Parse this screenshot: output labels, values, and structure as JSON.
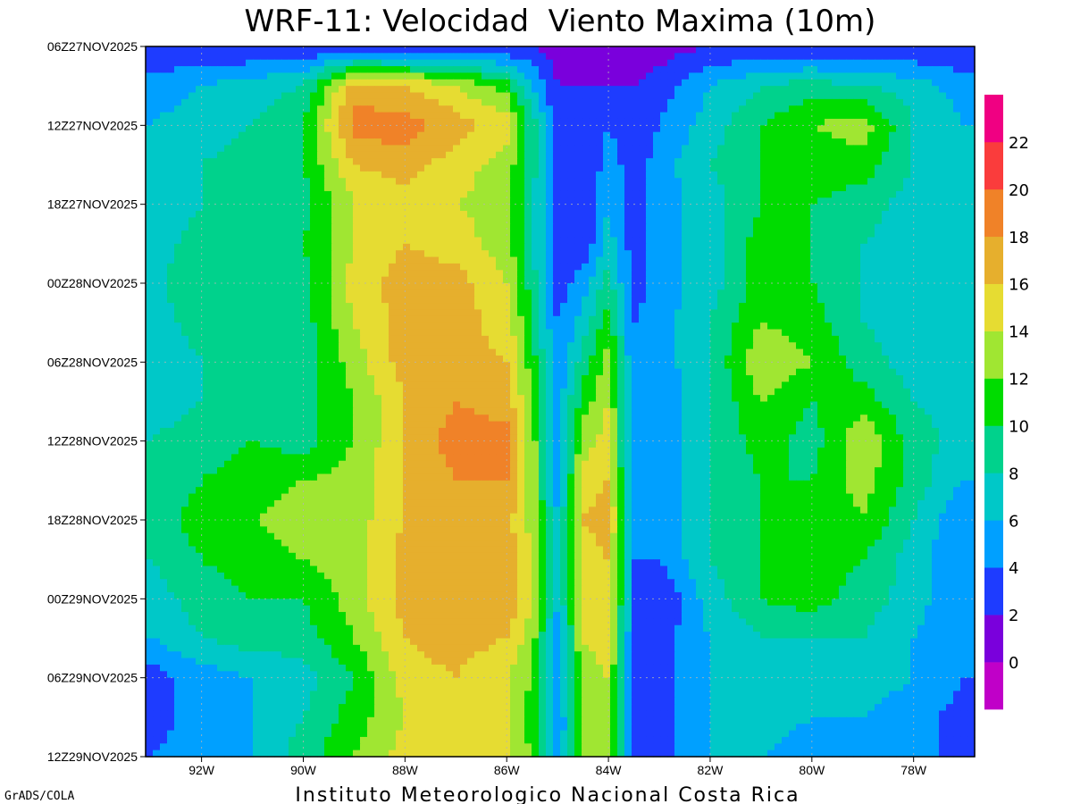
{
  "chart_data": {
    "type": "heatmap",
    "title": "WRF-11: Velocidad  Viento Maxima (10m)",
    "xlabel": "",
    "ylabel": "",
    "x_ticks": [
      "92W",
      "90W",
      "88W",
      "86W",
      "84W",
      "82W",
      "80W",
      "78W"
    ],
    "x_tick_values": [
      -92,
      -90,
      -88,
      -86,
      -84,
      -82,
      -80,
      -78
    ],
    "xlim": [
      -93.1,
      -76.8
    ],
    "y_ticks": [
      "06Z27NOV2025",
      "12Z27NOV2025",
      "18Z27NOV2025",
      "00Z28NOV2025",
      "06Z28NOV2025",
      "12Z28NOV2025",
      "18Z28NOV2025",
      "00Z29NOV2025",
      "06Z29NOV2025",
      "12Z29NOV2025"
    ],
    "y_tick_hours": [
      0,
      6,
      12,
      18,
      24,
      30,
      36,
      42,
      48,
      54
    ],
    "grid": true,
    "levels": [
      0,
      2,
      4,
      6,
      8,
      10,
      12,
      14,
      16,
      18,
      20,
      22
    ],
    "colorbar_labels": [
      "0",
      "2",
      "4",
      "6",
      "8",
      "10",
      "12",
      "14",
      "16",
      "18",
      "20",
      "22"
    ],
    "colors": [
      "#c000c8",
      "#7a00dc",
      "#1e3cff",
      "#00a0ff",
      "#00c8c8",
      "#00d28c",
      "#00dc00",
      "#a0e632",
      "#e6dc32",
      "#e6af2d",
      "#f08228",
      "#fa3c3c",
      "#f00082"
    ],
    "columns_lon": [
      -93.0,
      -92.0,
      -91.0,
      -90.0,
      -89.0,
      -88.0,
      -87.0,
      -86.0,
      -85.5,
      -85.0,
      -84.5,
      -84.0,
      -83.5,
      -83.0,
      -82.0,
      -81.0,
      -80.0,
      -79.0,
      -78.0,
      -77.0
    ],
    "rows_hours": [
      0,
      3,
      6,
      9,
      12,
      15,
      18,
      21,
      24,
      27,
      30,
      33,
      36,
      39,
      42,
      45,
      48,
      51,
      54
    ],
    "values": [
      [
        2,
        2,
        2,
        2,
        2,
        2,
        2,
        2,
        2,
        1,
        1,
        1,
        1,
        1,
        2,
        2,
        2,
        2,
        2,
        2
      ],
      [
        5,
        6,
        7,
        8,
        17,
        16,
        14,
        11,
        6,
        2,
        2,
        2,
        2,
        3,
        6,
        8,
        9,
        8,
        7,
        5
      ],
      [
        6,
        7,
        8,
        10,
        19,
        19,
        17,
        15,
        9,
        3,
        2,
        4,
        2,
        4,
        7,
        10,
        12,
        13,
        8,
        6
      ],
      [
        7,
        8,
        9,
        10,
        16,
        17,
        15,
        13,
        9,
        3,
        2,
        5,
        3,
        5,
        8,
        10,
        11,
        11,
        8,
        6
      ],
      [
        6,
        8,
        9,
        9,
        14,
        15,
        14,
        13,
        8,
        3,
        2,
        6,
        3,
        5,
        7,
        10,
        10,
        9,
        7,
        6
      ],
      [
        7,
        9,
        9,
        10,
        14,
        16,
        15,
        13,
        8,
        3,
        2,
        7,
        3,
        5,
        7,
        11,
        10,
        8,
        7,
        6
      ],
      [
        7,
        10,
        10,
        9,
        15,
        17,
        17,
        14,
        9,
        3,
        5,
        9,
        3,
        5,
        7,
        11,
        10,
        8,
        7,
        6
      ],
      [
        7,
        9,
        9,
        9,
        14,
        17,
        17,
        15,
        10,
        4,
        7,
        11,
        4,
        5,
        8,
        12,
        11,
        8,
        7,
        6
      ],
      [
        6,
        8,
        9,
        9,
        13,
        17,
        17,
        16,
        11,
        4,
        9,
        13,
        4,
        5,
        8,
        14,
        12,
        9,
        7,
        6
      ],
      [
        7,
        8,
        9,
        9,
        12,
        16,
        18,
        17,
        12,
        5,
        11,
        14,
        4,
        4,
        8,
        12,
        10,
        11,
        8,
        7
      ],
      [
        8,
        9,
        10,
        9,
        12,
        16,
        19,
        19,
        13,
        5,
        13,
        15,
        4,
        4,
        8,
        11,
        9,
        14,
        9,
        7
      ],
      [
        8,
        10,
        11,
        12,
        13,
        16,
        18,
        18,
        13,
        5,
        15,
        16,
        4,
        4,
        8,
        10,
        10,
        13,
        9,
        6
      ],
      [
        9,
        11,
        12,
        13,
        13,
        16,
        18,
        17,
        13,
        6,
        16,
        17,
        4,
        4,
        8,
        10,
        10,
        12,
        8,
        4
      ],
      [
        8,
        10,
        11,
        12,
        13,
        17,
        17,
        17,
        14,
        6,
        15,
        16,
        4,
        4,
        8,
        10,
        11,
        10,
        7,
        4
      ],
      [
        7,
        9,
        10,
        10,
        13,
        17,
        17,
        18,
        14,
        6,
        15,
        16,
        4,
        2,
        7,
        10,
        11,
        9,
        7,
        4
      ],
      [
        6,
        8,
        9,
        9,
        12,
        16,
        17,
        16,
        13,
        5,
        14,
        15,
        3,
        3,
        6,
        8,
        8,
        8,
        6,
        4
      ],
      [
        3,
        5,
        6,
        7,
        10,
        15,
        16,
        14,
        12,
        5,
        13,
        14,
        3,
        3,
        6,
        7,
        7,
        7,
        6,
        4
      ],
      [
        3,
        5,
        6,
        8,
        11,
        14,
        15,
        14,
        11,
        4,
        12,
        13,
        3,
        3,
        6,
        7,
        6,
        6,
        5,
        3
      ],
      [
        4,
        5,
        6,
        9,
        12,
        15,
        15,
        14,
        12,
        4,
        13,
        14,
        3,
        3,
        6,
        6,
        5,
        5,
        5,
        3
      ]
    ]
  },
  "credit": "GrADS/COLA",
  "footer": "Instituto Meteorologico Nacional Costa Rica"
}
